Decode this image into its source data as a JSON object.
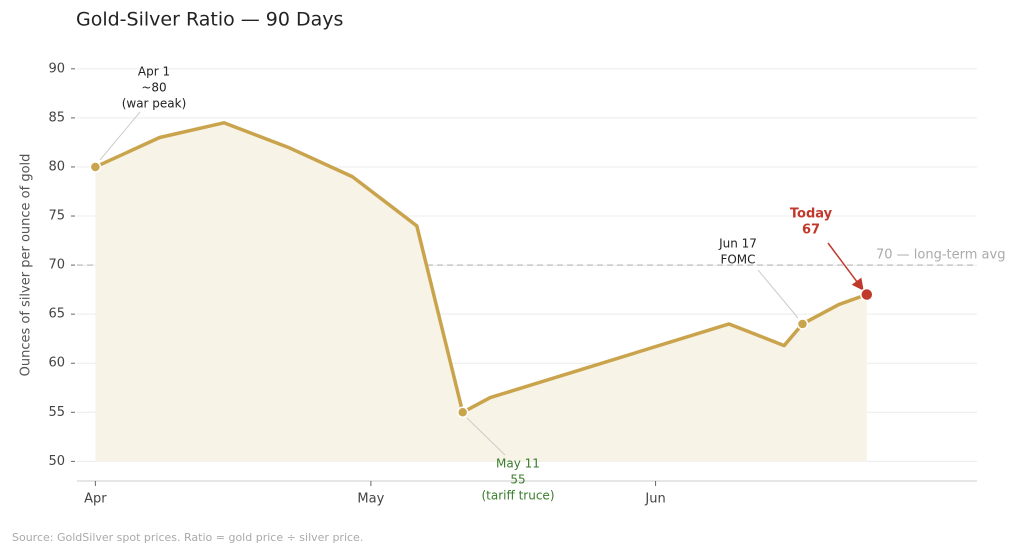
{
  "chart_data": {
    "type": "line",
    "title": "Gold-Silver Ratio — 90 Days",
    "y_label": "Ounces of silver per ounce of gold",
    "source": "Source: GoldSilver spot prices. Ratio = gold price ÷ silver price.",
    "x": [
      0,
      7,
      14,
      21,
      28,
      35,
      40,
      43,
      69,
      75,
      77,
      81,
      84
    ],
    "values": [
      80,
      83,
      84.5,
      82,
      79,
      74,
      55,
      56.5,
      64,
      61.8,
      64,
      66,
      67
    ],
    "color": "#c9a44c",
    "fill": "#f7f3e6",
    "xlim": [
      -2,
      96
    ],
    "xticks": [
      {
        "value": 0,
        "label": "Apr"
      },
      {
        "value": 30,
        "label": "May"
      },
      {
        "value": 61,
        "label": "Jun"
      }
    ],
    "ylim": [
      48,
      91
    ],
    "yticks": [
      50,
      55,
      60,
      65,
      70,
      75,
      80,
      85,
      90
    ],
    "grid": true,
    "reference_line": {
      "value": 70,
      "label": "70 — long-term avg"
    },
    "annotations": [
      {
        "index": 0,
        "lines": [
          "Apr 1",
          "~80",
          "(war peak)"
        ],
        "color": "#222222"
      },
      {
        "index": 6,
        "lines": [
          "May 11",
          "55",
          "(tariff truce)"
        ],
        "color": "#3a7d2c"
      },
      {
        "index": 10,
        "lines": [
          "Jun 17",
          "FOMC"
        ],
        "color": "#222222"
      }
    ],
    "today": {
      "index": 12,
      "lines": [
        "Today",
        "67"
      ],
      "color": "#c0392b"
    }
  }
}
